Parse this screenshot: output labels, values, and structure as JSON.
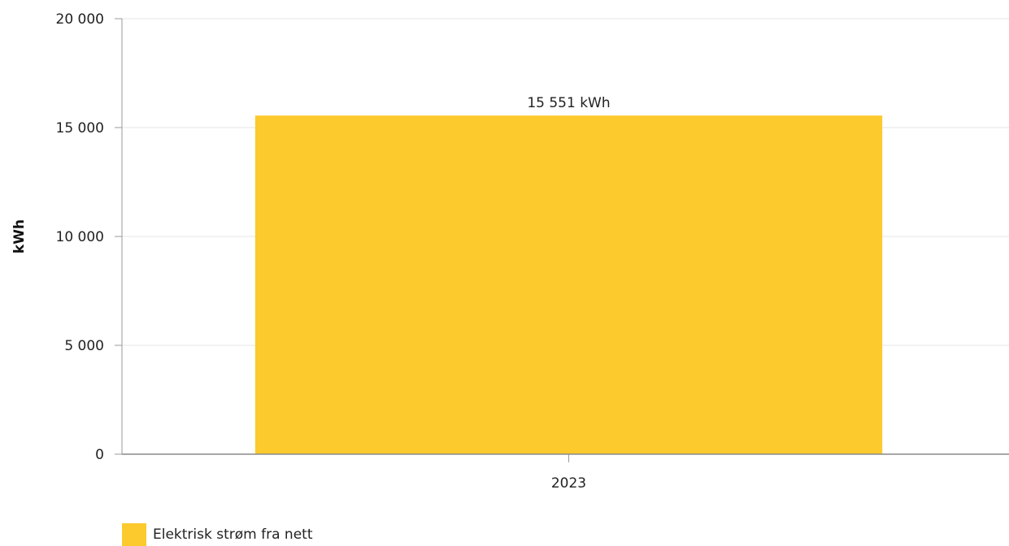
{
  "chart_data": {
    "type": "bar",
    "categories": [
      "2023"
    ],
    "series": [
      {
        "name": "Elektrisk strøm fra nett",
        "values": [
          15551
        ],
        "data_labels": [
          "15 551 kWh"
        ],
        "color": "#FDCA2E"
      }
    ],
    "xlabel": "",
    "ylabel": "kWh",
    "ylim": [
      0,
      20000
    ],
    "yticks": [
      0,
      5000,
      10000,
      15000,
      20000
    ],
    "ytick_labels": [
      "0",
      "5 000",
      "10 000",
      "15 000",
      "20 000"
    ],
    "grid": true,
    "legend_position": "bottom-left"
  }
}
